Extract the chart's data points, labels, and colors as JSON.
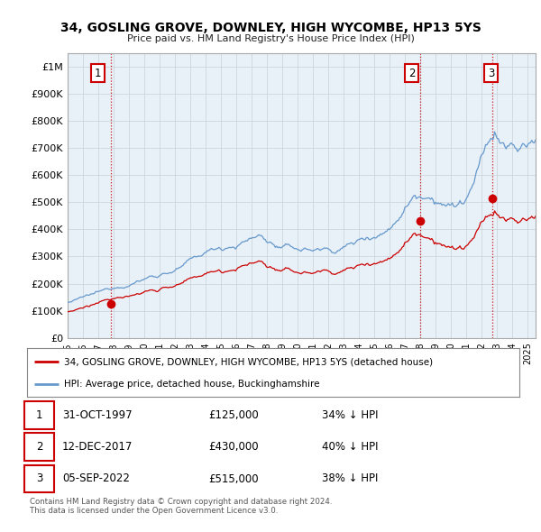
{
  "title": "34, GOSLING GROVE, DOWNLEY, HIGH WYCOMBE, HP13 5YS",
  "subtitle": "Price paid vs. HM Land Registry's House Price Index (HPI)",
  "xlim_start": 1995.0,
  "xlim_end": 2025.5,
  "ylim": [
    0,
    1050000
  ],
  "yticks": [
    0,
    100000,
    200000,
    300000,
    400000,
    500000,
    600000,
    700000,
    800000,
    900000,
    1000000
  ],
  "ytick_labels": [
    "£0",
    "£100K",
    "£200K",
    "£300K",
    "£400K",
    "£500K",
    "£600K",
    "£700K",
    "£800K",
    "£900K",
    "£1M"
  ],
  "sale_dates": [
    1997.833,
    2017.95,
    2022.675
  ],
  "sale_prices": [
    125000,
    430000,
    515000
  ],
  "sale_labels": [
    "1",
    "2",
    "3"
  ],
  "hpi_color": "#6699cc",
  "sale_color": "#cc0000",
  "vline_color": "#cc0000",
  "chart_bg": "#e8f0f8",
  "legend_sale_label": "34, GOSLING GROVE, DOWNLEY, HIGH WYCOMBE, HP13 5YS (detached house)",
  "legend_hpi_label": "HPI: Average price, detached house, Buckinghamshire",
  "table_rows": [
    [
      "1",
      "31-OCT-1997",
      "£125,000",
      "34% ↓ HPI"
    ],
    [
      "2",
      "12-DEC-2017",
      "£430,000",
      "40% ↓ HPI"
    ],
    [
      "3",
      "05-SEP-2022",
      "£515,000",
      "38% ↓ HPI"
    ]
  ],
  "footnote": "Contains HM Land Registry data © Crown copyright and database right 2024.\nThis data is licensed under the Open Government Licence v3.0.",
  "background_color": "#ffffff",
  "grid_color": "#c8d0d8"
}
